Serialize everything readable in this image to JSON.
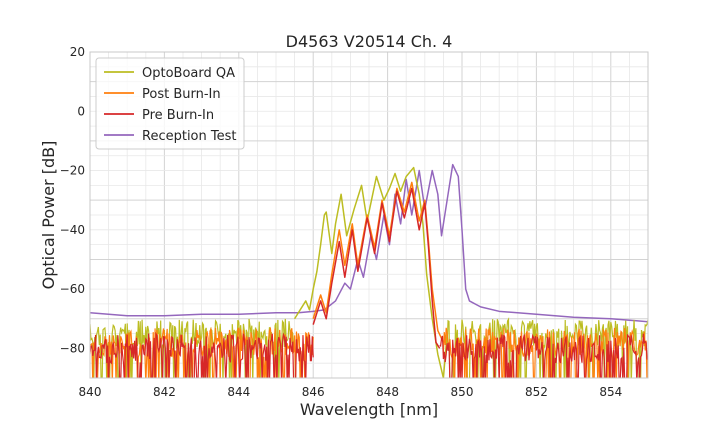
{
  "chart_data": {
    "type": "line",
    "title": "D4563 V20514 Ch. 4",
    "xlabel": "Wavelength [nm]",
    "ylabel": "Optical Power [dB]",
    "xlim": [
      840,
      855
    ],
    "ylim": [
      -90,
      20
    ],
    "x_ticks": [
      840,
      842,
      844,
      846,
      848,
      850,
      852,
      854
    ],
    "y_ticks": [
      20,
      0,
      -20,
      -40,
      -60,
      -80
    ],
    "x_tick_labels": [
      "840",
      "842",
      "844",
      "846",
      "848",
      "850",
      "852",
      "854"
    ],
    "y_tick_labels": [
      "20",
      "0",
      "−20",
      "−40",
      "−60",
      "−80"
    ],
    "grid": true,
    "legend_position": "top-left",
    "series": [
      {
        "name": "OptoBoard QA",
        "color": "#bcbd22",
        "noise_floor": -75,
        "noise_region": [
          [
            840,
            845.5
          ],
          [
            849.6,
            855
          ]
        ],
        "points": [
          [
            845.5,
            -70
          ],
          [
            845.8,
            -64
          ],
          [
            845.9,
            -67
          ],
          [
            846.0,
            -60
          ],
          [
            846.1,
            -54
          ],
          [
            846.2,
            -45
          ],
          [
            846.3,
            -35
          ],
          [
            846.35,
            -34
          ],
          [
            846.5,
            -48
          ],
          [
            846.6,
            -38
          ],
          [
            846.75,
            -28
          ],
          [
            846.9,
            -42
          ],
          [
            847.1,
            -33
          ],
          [
            847.3,
            -25
          ],
          [
            847.45,
            -37
          ],
          [
            847.7,
            -22
          ],
          [
            847.9,
            -30
          ],
          [
            848.05,
            -26
          ],
          [
            848.2,
            -21
          ],
          [
            848.35,
            -27
          ],
          [
            848.5,
            -22
          ],
          [
            848.7,
            -19
          ],
          [
            848.85,
            -28
          ],
          [
            848.95,
            -38
          ],
          [
            849.05,
            -55
          ],
          [
            849.2,
            -70
          ],
          [
            849.35,
            -82
          ],
          [
            849.5,
            -90
          ],
          [
            849.6,
            -75
          ]
        ]
      },
      {
        "name": "Post Burn-In",
        "color": "#ff7f0e",
        "noise_floor": -78,
        "noise_region": [
          [
            840,
            846.0
          ],
          [
            849.5,
            855
          ]
        ],
        "points": [
          [
            846.0,
            -70
          ],
          [
            846.2,
            -62
          ],
          [
            846.35,
            -68
          ],
          [
            846.5,
            -55
          ],
          [
            846.7,
            -40
          ],
          [
            846.85,
            -52
          ],
          [
            847.05,
            -38
          ],
          [
            847.2,
            -52
          ],
          [
            847.45,
            -35
          ],
          [
            847.65,
            -46
          ],
          [
            847.85,
            -30
          ],
          [
            848.05,
            -42
          ],
          [
            848.25,
            -26
          ],
          [
            848.45,
            -34
          ],
          [
            848.65,
            -24
          ],
          [
            848.85,
            -37
          ],
          [
            849.0,
            -30
          ],
          [
            849.1,
            -44
          ],
          [
            849.2,
            -60
          ],
          [
            849.35,
            -74
          ],
          [
            849.5,
            -78
          ]
        ]
      },
      {
        "name": "Pre Burn-In",
        "color": "#d62728",
        "noise_floor": -80,
        "noise_region": [
          [
            840,
            846.0
          ],
          [
            849.4,
            855
          ]
        ],
        "points": [
          [
            846.0,
            -72
          ],
          [
            846.2,
            -64
          ],
          [
            846.35,
            -70
          ],
          [
            846.5,
            -58
          ],
          [
            846.7,
            -44
          ],
          [
            846.85,
            -56
          ],
          [
            847.05,
            -40
          ],
          [
            847.2,
            -54
          ],
          [
            847.45,
            -36
          ],
          [
            847.65,
            -48
          ],
          [
            847.85,
            -31
          ],
          [
            848.05,
            -44
          ],
          [
            848.25,
            -27
          ],
          [
            848.45,
            -36
          ],
          [
            848.65,
            -26
          ],
          [
            848.85,
            -40
          ],
          [
            849.0,
            -31
          ],
          [
            849.1,
            -46
          ],
          [
            849.2,
            -64
          ],
          [
            849.3,
            -78
          ],
          [
            849.4,
            -80
          ]
        ]
      },
      {
        "name": "Reception Test",
        "color": "#9467bd",
        "noise_floor": -68,
        "points": [
          [
            840.0,
            -68
          ],
          [
            841.0,
            -69
          ],
          [
            842.0,
            -69
          ],
          [
            843.0,
            -68.5
          ],
          [
            844.0,
            -68.5
          ],
          [
            845.0,
            -68
          ],
          [
            845.6,
            -68
          ],
          [
            846.0,
            -67.5
          ],
          [
            846.3,
            -67
          ],
          [
            846.6,
            -64
          ],
          [
            846.85,
            -58
          ],
          [
            847.0,
            -60
          ],
          [
            847.2,
            -50
          ],
          [
            847.35,
            -56
          ],
          [
            847.55,
            -42
          ],
          [
            847.7,
            -50
          ],
          [
            847.9,
            -35
          ],
          [
            848.05,
            -45
          ],
          [
            848.2,
            -28
          ],
          [
            848.35,
            -38
          ],
          [
            848.5,
            -23
          ],
          [
            848.65,
            -35
          ],
          [
            848.85,
            -20
          ],
          [
            849.0,
            -33
          ],
          [
            849.2,
            -20
          ],
          [
            849.35,
            -28
          ],
          [
            849.45,
            -42
          ],
          [
            849.6,
            -30
          ],
          [
            849.75,
            -18
          ],
          [
            849.9,
            -22
          ],
          [
            850.0,
            -40
          ],
          [
            850.1,
            -60
          ],
          [
            850.2,
            -64
          ],
          [
            850.5,
            -66
          ],
          [
            851.0,
            -67.5
          ],
          [
            852.0,
            -68.5
          ],
          [
            853.0,
            -69.5
          ],
          [
            854.0,
            -70
          ],
          [
            855.0,
            -71
          ]
        ]
      }
    ]
  }
}
